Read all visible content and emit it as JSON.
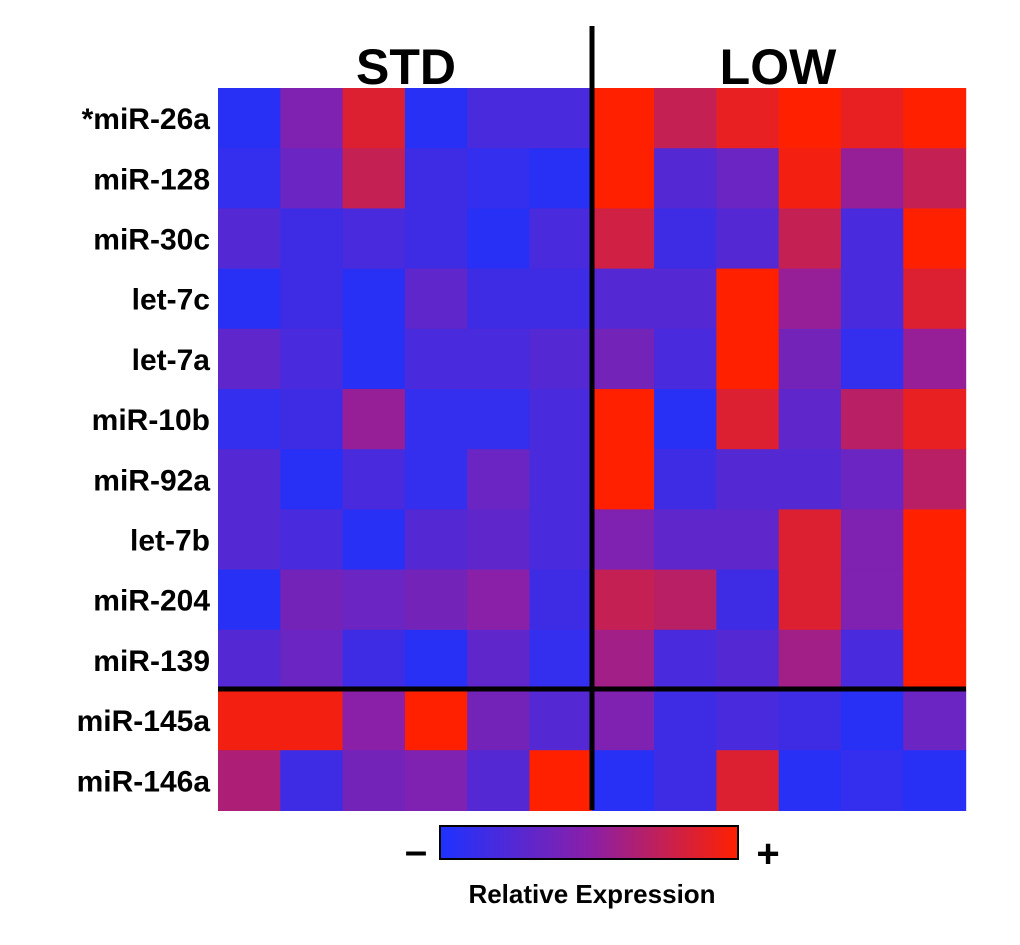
{
  "chart_data": {
    "type": "heatmap",
    "title": "",
    "group_labels": [
      "STD",
      "LOW"
    ],
    "group_sizes": [
      6,
      6
    ],
    "row_labels": [
      "*miR-26a",
      "miR-128",
      "miR-30c",
      "let-7c",
      "let-7a",
      "miR-10b",
      "miR-92a",
      "let-7b",
      "miR-204",
      "miR-139",
      "miR-145a",
      "miR-146a"
    ],
    "row_split_after": 10,
    "values": [
      [
        0.05,
        0.45,
        0.85,
        0.05,
        0.2,
        0.2,
        1.0,
        0.75,
        0.9,
        1.0,
        0.9,
        1.0
      ],
      [
        0.1,
        0.35,
        0.75,
        0.15,
        0.1,
        0.05,
        1.0,
        0.25,
        0.35,
        0.95,
        0.55,
        0.75
      ],
      [
        0.25,
        0.15,
        0.2,
        0.15,
        0.05,
        0.2,
        0.8,
        0.15,
        0.25,
        0.75,
        0.2,
        1.0
      ],
      [
        0.05,
        0.15,
        0.05,
        0.3,
        0.15,
        0.15,
        0.25,
        0.25,
        1.0,
        0.55,
        0.2,
        0.85
      ],
      [
        0.3,
        0.2,
        0.05,
        0.2,
        0.2,
        0.25,
        0.4,
        0.2,
        1.0,
        0.4,
        0.1,
        0.55
      ],
      [
        0.1,
        0.15,
        0.55,
        0.1,
        0.1,
        0.2,
        1.0,
        0.05,
        0.85,
        0.3,
        0.7,
        0.9
      ],
      [
        0.25,
        0.05,
        0.2,
        0.1,
        0.35,
        0.2,
        1.0,
        0.15,
        0.25,
        0.25,
        0.35,
        0.7
      ],
      [
        0.25,
        0.2,
        0.05,
        0.25,
        0.3,
        0.2,
        0.45,
        0.3,
        0.3,
        0.85,
        0.45,
        1.0
      ],
      [
        0.05,
        0.4,
        0.35,
        0.4,
        0.5,
        0.15,
        0.75,
        0.7,
        0.15,
        0.85,
        0.45,
        1.0
      ],
      [
        0.25,
        0.35,
        0.15,
        0.05,
        0.3,
        0.1,
        0.6,
        0.2,
        0.25,
        0.6,
        0.2,
        1.0
      ],
      [
        0.95,
        0.95,
        0.5,
        1.0,
        0.4,
        0.25,
        0.45,
        0.15,
        0.2,
        0.15,
        0.05,
        0.35
      ],
      [
        0.65,
        0.15,
        0.4,
        0.45,
        0.25,
        1.0,
        0.05,
        0.15,
        0.85,
        0.05,
        0.1,
        0.05
      ]
    ],
    "value_scale": "relative (0 = low / blue, 1 = high / red)",
    "colormap": [
      "#1e32ff",
      "#8a1fa8",
      "#ff2000"
    ],
    "legend": {
      "label": "Relative Expression",
      "min_symbol": "–",
      "max_symbol": "+"
    }
  }
}
